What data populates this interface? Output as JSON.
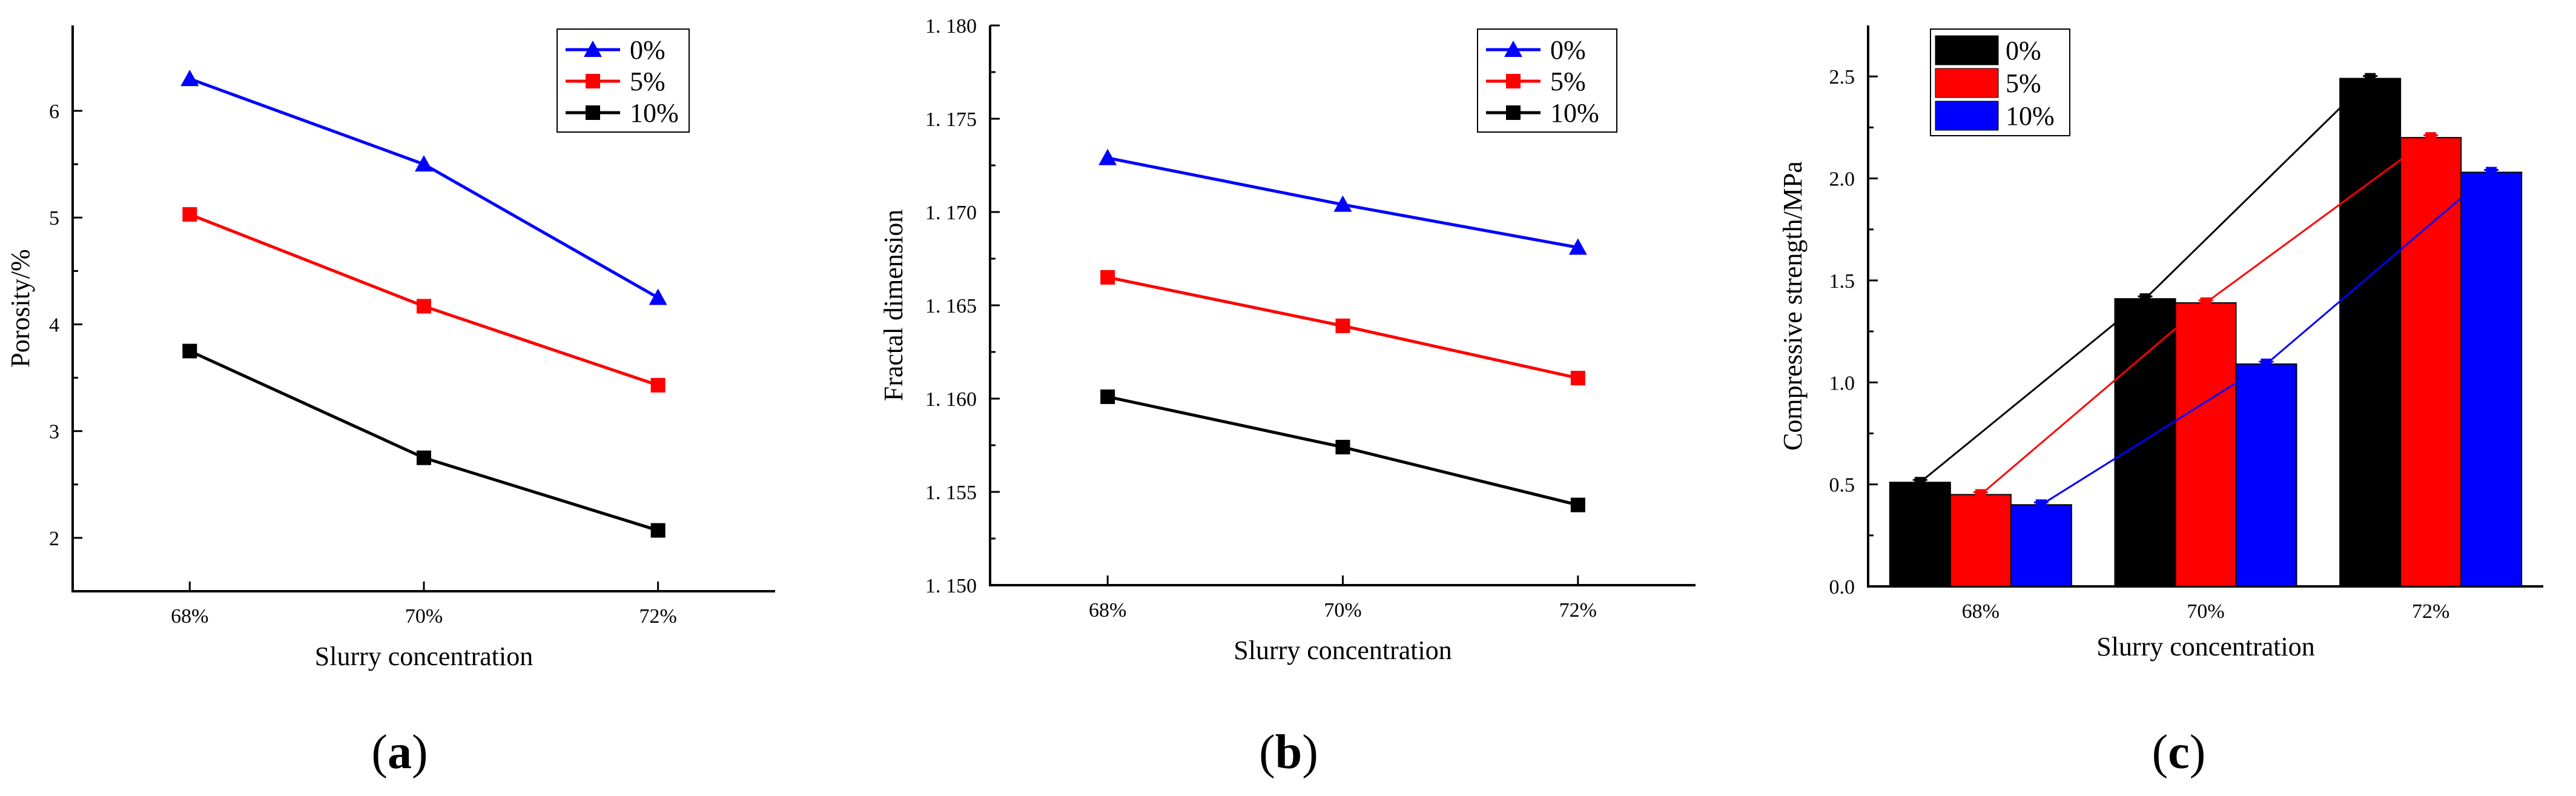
{
  "chart_data": [
    {
      "type": "line",
      "title": "",
      "caption": "(a)",
      "caption_letter": "a",
      "xlabel": "Slurry concentration",
      "ylabel": "Porosity/%",
      "categories": [
        "68%",
        "70%",
        "72%"
      ],
      "ylim": [
        1.5,
        6.8
      ],
      "yticks": [
        2,
        3,
        4,
        5,
        6
      ],
      "ytick_labels": [
        "2",
        "3",
        "4",
        "5",
        "6"
      ],
      "grid": false,
      "legend_position": "top-right",
      "series": [
        {
          "name": "0%",
          "color": "#0000ff",
          "marker": "triangle",
          "values": [
            6.3,
            5.5,
            4.25
          ]
        },
        {
          "name": "5%",
          "color": "#ff0000",
          "marker": "square",
          "values": [
            5.03,
            4.17,
            3.43
          ]
        },
        {
          "name": "10%",
          "color": "#000000",
          "marker": "square",
          "values": [
            3.75,
            2.75,
            2.07
          ]
        }
      ]
    },
    {
      "type": "line",
      "title": "",
      "caption": "(b)",
      "caption_letter": "b",
      "xlabel": "Slurry concentration",
      "ylabel": "Fractal dimension",
      "categories": [
        "68%",
        "70%",
        "72%"
      ],
      "ylim": [
        1.15,
        1.18
      ],
      "yticks": [
        1.15,
        1.155,
        1.16,
        1.165,
        1.17,
        1.175,
        1.18
      ],
      "ytick_labels": [
        "1. 150",
        "1. 155",
        "1. 160",
        "1. 165",
        "1. 170",
        "1. 175",
        "1. 180"
      ],
      "grid": false,
      "legend_position": "top-right",
      "series": [
        {
          "name": "0%",
          "color": "#0000ff",
          "marker": "triangle",
          "values": [
            1.1729,
            1.1704,
            1.1681
          ]
        },
        {
          "name": "5%",
          "color": "#ff0000",
          "marker": "square",
          "values": [
            1.1665,
            1.1639,
            1.1611
          ]
        },
        {
          "name": "10%",
          "color": "#000000",
          "marker": "square",
          "values": [
            1.1601,
            1.1574,
            1.1543
          ]
        }
      ]
    },
    {
      "type": "bar",
      "title": "",
      "caption": "(c)",
      "caption_letter": "c",
      "xlabel": "Slurry concentration",
      "ylabel": "Compressive strength/MPa",
      "categories": [
        "68%",
        "70%",
        "72%"
      ],
      "ylim": [
        0,
        2.75
      ],
      "yticks": [
        0,
        0.5,
        1.0,
        1.5,
        2.0,
        2.5
      ],
      "ytick_labels": [
        "0.0",
        "0.5",
        "1.0",
        "1.5",
        "2.0",
        "2.5"
      ],
      "grid": false,
      "legend_position": "top-left",
      "trend_lines": true,
      "series": [
        {
          "name": "0%",
          "color": "#000000",
          "values": [
            0.51,
            1.41,
            2.49
          ]
        },
        {
          "name": "5%",
          "color": "#ff0000",
          "values": [
            0.45,
            1.39,
            2.2
          ]
        },
        {
          "name": "10%",
          "color": "#0000ff",
          "values": [
            0.4,
            1.09,
            2.03
          ]
        }
      ]
    }
  ]
}
